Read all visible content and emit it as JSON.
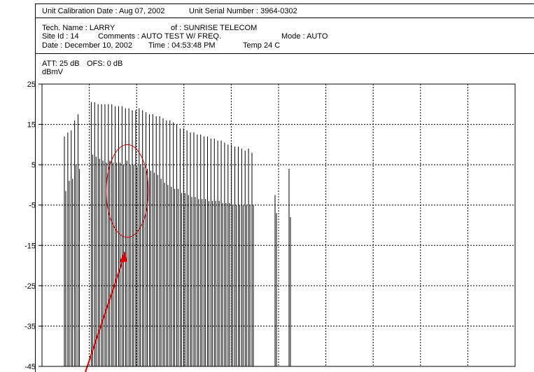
{
  "header": {
    "calibration_date": "Unit Calibration Date : Aug 07, 2002",
    "serial_number": "Unit Serial Number : 3964-0302",
    "tech_name": "Tech. Name : LARRY",
    "company": "of : SUNRISE TELECOM",
    "site_id": "Site Id : 14",
    "comments": "Comments : AUTO TEST W/ FREQ.",
    "mode": "Mode : AUTO",
    "date": "Date : December 10, 2002",
    "time": "Time : 04:53:48 PM",
    "temp": "Temp 24 C"
  },
  "settings": {
    "attenuation": "ATT: 25 dB",
    "offset": "OFS: 0 dB",
    "units": "dBmV"
  },
  "chart_data": {
    "type": "bar",
    "ylabel": "dBmV",
    "ylim": [
      -45,
      25
    ],
    "yticks": [
      "25",
      "15",
      "5",
      "-5",
      "-15",
      "-25",
      "-35",
      "-45"
    ],
    "grid": true,
    "x_gridlines": 10,
    "bar_base": -45,
    "pairs": [
      [
        12,
        -1.5
      ],
      [
        13,
        1
      ],
      [
        13.5,
        1.5
      ],
      [
        16,
        5
      ],
      [
        17.5,
        4
      ],
      [
        20.5,
        7.5
      ],
      [
        20.5,
        7
      ],
      [
        20,
        6.5
      ],
      [
        20,
        6
      ],
      [
        20,
        5.5
      ],
      [
        20,
        6
      ],
      [
        20,
        5.5
      ],
      [
        19.5,
        5.5
      ],
      [
        19.5,
        5.5
      ],
      [
        19.5,
        5
      ],
      [
        19,
        6
      ],
      [
        19,
        5
      ],
      [
        18.5,
        5
      ],
      [
        18.5,
        4.5
      ],
      [
        19,
        5
      ],
      [
        18.5,
        4.5
      ],
      [
        18,
        4
      ],
      [
        17.5,
        3.5
      ],
      [
        17.5,
        3
      ],
      [
        17,
        2.5
      ],
      [
        17,
        1.5
      ],
      [
        16.5,
        0.5
      ],
      [
        16,
        0
      ],
      [
        16,
        -0.5
      ],
      [
        15.5,
        -1
      ],
      [
        15,
        -1
      ],
      [
        14,
        -2
      ],
      [
        14,
        -2
      ],
      [
        13.5,
        -2.5
      ],
      [
        13,
        -3
      ],
      [
        13,
        -3
      ],
      [
        12.5,
        -3.5
      ],
      [
        12.5,
        -3.5
      ],
      [
        12,
        -3.5
      ],
      [
        12,
        -4
      ],
      [
        11.5,
        -4
      ],
      [
        11.5,
        -4
      ],
      [
        11,
        -4
      ],
      [
        11,
        -4.5
      ],
      [
        10.5,
        -4.5
      ],
      [
        10,
        -4.5
      ],
      [
        10,
        -5
      ],
      [
        9.5,
        -5
      ],
      [
        9.5,
        -5
      ],
      [
        9,
        -5
      ],
      [
        8.5,
        -5
      ],
      [
        9,
        -5
      ],
      [
        8,
        -5
      ]
    ],
    "isolated": [
      [
        -2.5,
        -7
      ],
      [
        4,
        -8
      ]
    ],
    "annotations": [
      {
        "shape": "ellipse",
        "color": "#cc0000",
        "cx": 0.5,
        "cy": -1.5,
        "ry": 11.5
      },
      {
        "shape": "arrow",
        "color": "#dd0000"
      }
    ]
  }
}
